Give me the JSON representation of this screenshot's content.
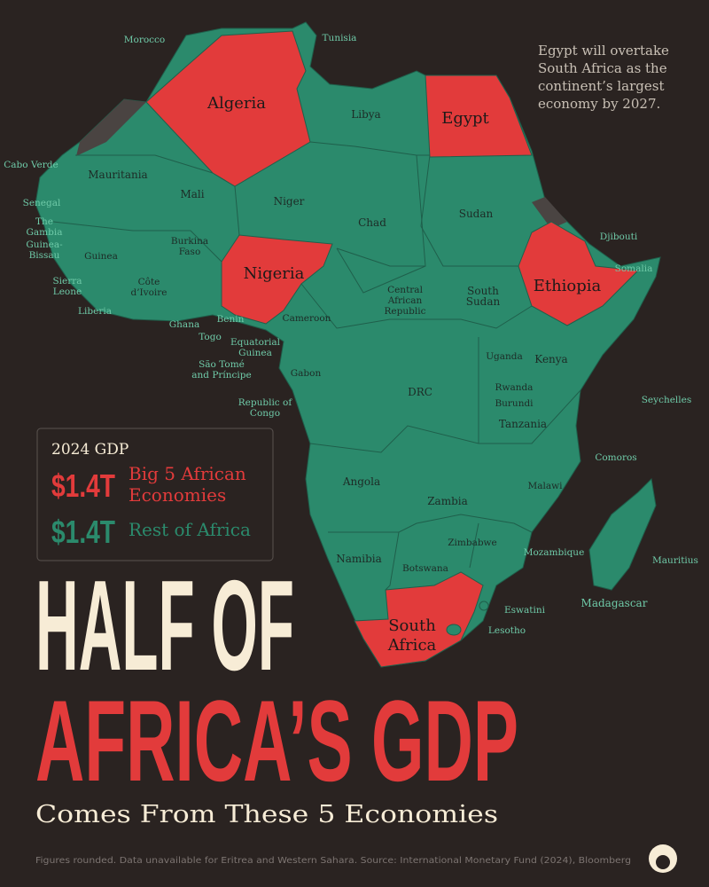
{
  "map": {
    "countries": [
      [
        "Morocco"
      ],
      [
        "Tunisia"
      ],
      [
        "Algeria"
      ],
      [
        "Libya"
      ],
      [
        "Egypt"
      ],
      [
        "Mauritania"
      ],
      [
        "Mali"
      ],
      [
        "Niger"
      ],
      [
        "Chad"
      ],
      [
        "Sudan"
      ],
      [
        "Nigeria"
      ],
      [
        "Ethiopia"
      ],
      [
        "Djibouti"
      ],
      [
        "Somalia"
      ],
      [
        "Cabo Verde"
      ],
      [
        "Senegal"
      ],
      [
        "The",
        "Gambia"
      ],
      [
        "Guinea-",
        "Bissau"
      ],
      [
        "Guinea"
      ],
      [
        "Burkina",
        "Faso"
      ],
      [
        "Côte",
        "d’Ivoire"
      ],
      [
        "Sierra",
        "Leone"
      ],
      [
        "Liberia"
      ],
      [
        "Ghana"
      ],
      [
        "Togo"
      ],
      [
        "Benin"
      ],
      [
        "Central",
        "African",
        "Republic"
      ],
      [
        "South",
        "Sudan"
      ],
      [
        "Cameroon"
      ],
      [
        "Equatorial",
        "Guinea"
      ],
      [
        "São Tomé",
        "and Príncipe"
      ],
      [
        "Gabon"
      ],
      [
        "DRC"
      ],
      [
        "Uganda"
      ],
      [
        "Kenya"
      ],
      [
        "Rwanda"
      ],
      [
        "Burundi"
      ],
      [
        "Tanzania"
      ],
      [
        "Republic of",
        "Congo"
      ],
      [
        "Seychelles"
      ],
      [
        "Comoros"
      ],
      [
        "Angola"
      ],
      [
        "Zambia"
      ],
      [
        "Malawi"
      ],
      [
        "Zimbabwe"
      ],
      [
        "Mozambique"
      ],
      [
        "Namibia"
      ],
      [
        "Botswana"
      ],
      [
        "Mauritius"
      ],
      [
        "Madagascar"
      ],
      [
        "Eswatini"
      ],
      [
        "Lesotho"
      ],
      [
        "South",
        "Africa"
      ]
    ]
  },
  "note": [
    "Egypt will overtake",
    "South Africa as the",
    "continent’s largest",
    "economy by 2027."
  ],
  "legend": {
    "title": "2024 GDP",
    "items": [
      {
        "value": "$1.4T",
        "label": [
          "Big 5 African",
          "Economies"
        ],
        "color": "#e23b3b"
      },
      {
        "value": "$1.4T",
        "label": [
          "Rest of Africa"
        ],
        "color": "#2b8a6c"
      }
    ]
  },
  "headline": {
    "line1": "HALF OF",
    "line2": "AFRICA’S GDP",
    "subtitle": "Comes From These 5 Economies"
  },
  "source": "Figures rounded. Data unavailable for Eritrea and Western Sahara. Source: International Monetary Fund (2024), Bloomberg"
}
